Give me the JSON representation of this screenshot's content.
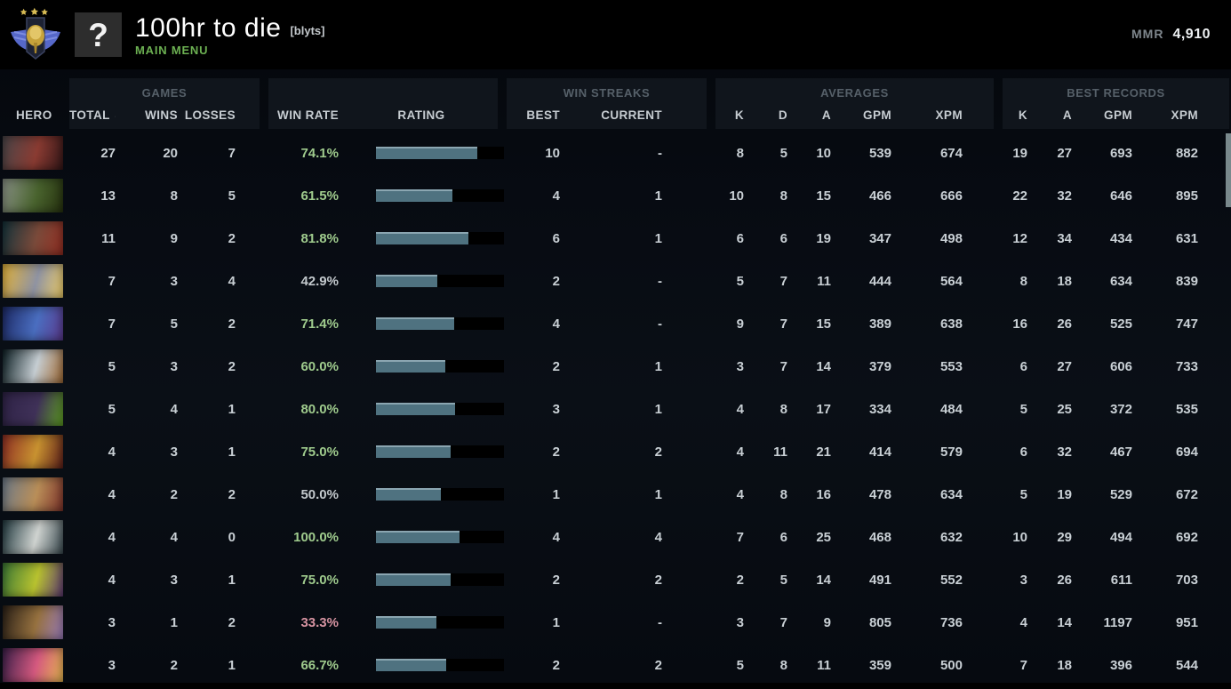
{
  "header_bar": {
    "title": "100hr to die",
    "tag": "[blyts]",
    "menu_label": "MAIN MENU",
    "avatar_glyph": "?",
    "mmr_label": "MMR",
    "mmr_value": "4,910",
    "medal_icon": "divine-rank-medal"
  },
  "table": {
    "columns": {
      "hero": "HERO",
      "games_group": "GAMES",
      "total": "TOTAL",
      "wins": "WINS",
      "losses": "LOSSES",
      "win_rate": "WIN RATE",
      "rating": "RATING",
      "streaks_group": "WIN STREAKS",
      "best": "BEST",
      "current": "CURRENT",
      "averages_group": "AVERAGES",
      "avg_k": "K",
      "avg_d": "D",
      "avg_a": "A",
      "avg_gpm": "GPM",
      "avg_xpm": "XPM",
      "records_group": "BEST RECORDS",
      "rec_k": "K",
      "rec_a": "A",
      "rec_gpm": "GPM",
      "rec_xpm": "XPM"
    },
    "sorted_by": "total",
    "rows": [
      {
        "hero": "axe",
        "portrait_colors": [
          "#4a4649",
          "#8a3b32",
          "#351718"
        ],
        "total": "27",
        "wins": "20",
        "losses": "7",
        "win_rate": "74.1%",
        "win_rate_color": "green",
        "rating_pct": 79,
        "best": "10",
        "current": "-",
        "avg_k": "8",
        "avg_d": "5",
        "avg_a": "10",
        "avg_gpm": "539",
        "avg_xpm": "674",
        "rec_k": "19",
        "rec_a": "27",
        "rec_gpm": "693",
        "rec_xpm": "882"
      },
      {
        "hero": "necrophos",
        "portrait_colors": [
          "#8a9287",
          "#49632e",
          "#27330f"
        ],
        "total": "13",
        "wins": "8",
        "losses": "5",
        "win_rate": "61.5%",
        "win_rate_color": "green",
        "rating_pct": 60,
        "best": "4",
        "current": "1",
        "avg_k": "10",
        "avg_d": "8",
        "avg_a": "15",
        "avg_gpm": "466",
        "avg_xpm": "666",
        "rec_k": "22",
        "rec_a": "32",
        "rec_gpm": "646",
        "rec_xpm": "895"
      },
      {
        "hero": "huskar",
        "portrait_colors": [
          "#14333b",
          "#7a4a3a",
          "#942e22"
        ],
        "total": "11",
        "wins": "9",
        "losses": "2",
        "win_rate": "81.8%",
        "win_rate_color": "green",
        "rating_pct": 72,
        "best": "6",
        "current": "1",
        "avg_k": "6",
        "avg_d": "6",
        "avg_a": "19",
        "avg_gpm": "347",
        "avg_xpm": "498",
        "rec_k": "12",
        "rec_a": "34",
        "rec_gpm": "434",
        "rec_xpm": "631"
      },
      {
        "hero": "phantom-lancer",
        "portrait_colors": [
          "#e3b33c",
          "#8f93a2",
          "#f0cf6a"
        ],
        "total": "7",
        "wins": "3",
        "losses": "4",
        "win_rate": "42.9%",
        "win_rate_color": "neutral",
        "rating_pct": 48,
        "best": "2",
        "current": "-",
        "avg_k": "5",
        "avg_d": "7",
        "avg_a": "11",
        "avg_gpm": "444",
        "avg_xpm": "564",
        "rec_k": "8",
        "rec_a": "18",
        "rec_gpm": "634",
        "rec_xpm": "839"
      },
      {
        "hero": "riki",
        "portrait_colors": [
          "#1d2a66",
          "#4a6ec0",
          "#5b3a8e"
        ],
        "total": "7",
        "wins": "5",
        "losses": "2",
        "win_rate": "71.4%",
        "win_rate_color": "green",
        "rating_pct": 61,
        "best": "4",
        "current": "-",
        "avg_k": "9",
        "avg_d": "7",
        "avg_a": "15",
        "avg_gpm": "389",
        "avg_xpm": "638",
        "rec_k": "16",
        "rec_a": "26",
        "rec_gpm": "525",
        "rec_xpm": "747"
      },
      {
        "hero": "magnus",
        "portrait_colors": [
          "#0e2126",
          "#c5cdd2",
          "#a06a35"
        ],
        "total": "5",
        "wins": "3",
        "losses": "2",
        "win_rate": "60.0%",
        "win_rate_color": "green",
        "rating_pct": 54,
        "best": "2",
        "current": "1",
        "avg_k": "3",
        "avg_d": "7",
        "avg_a": "14",
        "avg_gpm": "379",
        "avg_xpm": "553",
        "rec_k": "6",
        "rec_a": "27",
        "rec_gpm": "606",
        "rec_xpm": "733"
      },
      {
        "hero": "rubick",
        "portrait_colors": [
          "#2f2347",
          "#3f3158",
          "#5e9e23"
        ],
        "total": "5",
        "wins": "4",
        "losses": "1",
        "win_rate": "80.0%",
        "win_rate_color": "green",
        "rating_pct": 62,
        "best": "3",
        "current": "1",
        "avg_k": "4",
        "avg_d": "8",
        "avg_a": "17",
        "avg_gpm": "334",
        "avg_xpm": "484",
        "rec_k": "5",
        "rec_a": "25",
        "rec_gpm": "372",
        "rec_xpm": "535"
      },
      {
        "hero": "bounty-hunter",
        "portrait_colors": [
          "#8f2f24",
          "#c89230",
          "#5e1f1a"
        ],
        "total": "4",
        "wins": "3",
        "losses": "1",
        "win_rate": "75.0%",
        "win_rate_color": "green",
        "rating_pct": 58,
        "best": "2",
        "current": "2",
        "avg_k": "4",
        "avg_d": "11",
        "avg_a": "21",
        "avg_gpm": "414",
        "avg_xpm": "579",
        "rec_k": "6",
        "rec_a": "32",
        "rec_gpm": "467",
        "rec_xpm": "694"
      },
      {
        "hero": "centaur-warrunner",
        "portrait_colors": [
          "#6d7b8a",
          "#b98e58",
          "#7e332a"
        ],
        "total": "4",
        "wins": "2",
        "losses": "2",
        "win_rate": "50.0%",
        "win_rate_color": "neutral",
        "rating_pct": 51,
        "best": "1",
        "current": "1",
        "avg_k": "4",
        "avg_d": "8",
        "avg_a": "16",
        "avg_gpm": "478",
        "avg_xpm": "634",
        "rec_k": "5",
        "rec_a": "19",
        "rec_gpm": "529",
        "rec_xpm": "672"
      },
      {
        "hero": "sniper",
        "portrait_colors": [
          "#223a40",
          "#cfd3d0",
          "#3a4a50"
        ],
        "total": "4",
        "wins": "4",
        "losses": "0",
        "win_rate": "100.0%",
        "win_rate_color": "green",
        "rating_pct": 65,
        "best": "4",
        "current": "4",
        "avg_k": "7",
        "avg_d": "6",
        "avg_a": "25",
        "avg_gpm": "468",
        "avg_xpm": "632",
        "rec_k": "10",
        "rec_a": "29",
        "rec_gpm": "494",
        "rec_xpm": "692"
      },
      {
        "hero": "venomancer",
        "portrait_colors": [
          "#3c7a36",
          "#b8c22f",
          "#5e3a72"
        ],
        "total": "4",
        "wins": "3",
        "losses": "1",
        "win_rate": "75.0%",
        "win_rate_color": "green",
        "rating_pct": 58,
        "best": "2",
        "current": "2",
        "avg_k": "2",
        "avg_d": "5",
        "avg_a": "14",
        "avg_gpm": "491",
        "avg_xpm": "552",
        "rec_k": "3",
        "rec_a": "26",
        "rec_gpm": "611",
        "rec_xpm": "703"
      },
      {
        "hero": "alchemist",
        "portrait_colors": [
          "#2a2017",
          "#96713f",
          "#9a7cba"
        ],
        "total": "3",
        "wins": "1",
        "losses": "2",
        "win_rate": "33.3%",
        "win_rate_color": "red",
        "rating_pct": 47,
        "best": "1",
        "current": "-",
        "avg_k": "3",
        "avg_d": "7",
        "avg_a": "9",
        "avg_gpm": "805",
        "avg_xpm": "736",
        "rec_k": "4",
        "rec_a": "14",
        "rec_gpm": "1197",
        "rec_xpm": "951"
      },
      {
        "hero": "dark-willow",
        "portrait_colors": [
          "#3c1f4a",
          "#d4597f",
          "#e8b850"
        ],
        "total": "3",
        "wins": "2",
        "losses": "1",
        "win_rate": "66.7%",
        "win_rate_color": "green",
        "rating_pct": 55,
        "best": "2",
        "current": "2",
        "avg_k": "5",
        "avg_d": "8",
        "avg_a": "11",
        "avg_gpm": "359",
        "avg_xpm": "500",
        "rec_k": "7",
        "rec_a": "18",
        "rec_gpm": "396",
        "rec_xpm": "544"
      }
    ]
  },
  "colors": {
    "accent_green": "#6cb052",
    "win_rate_green": "#9fcb8d",
    "win_rate_neutral": "#c3c9cd",
    "win_rate_red": "#d794a2",
    "rating_bar_fill": "#4f7280",
    "rating_bar_track": "#000000",
    "scrollbar_thumb": "#79898c"
  }
}
